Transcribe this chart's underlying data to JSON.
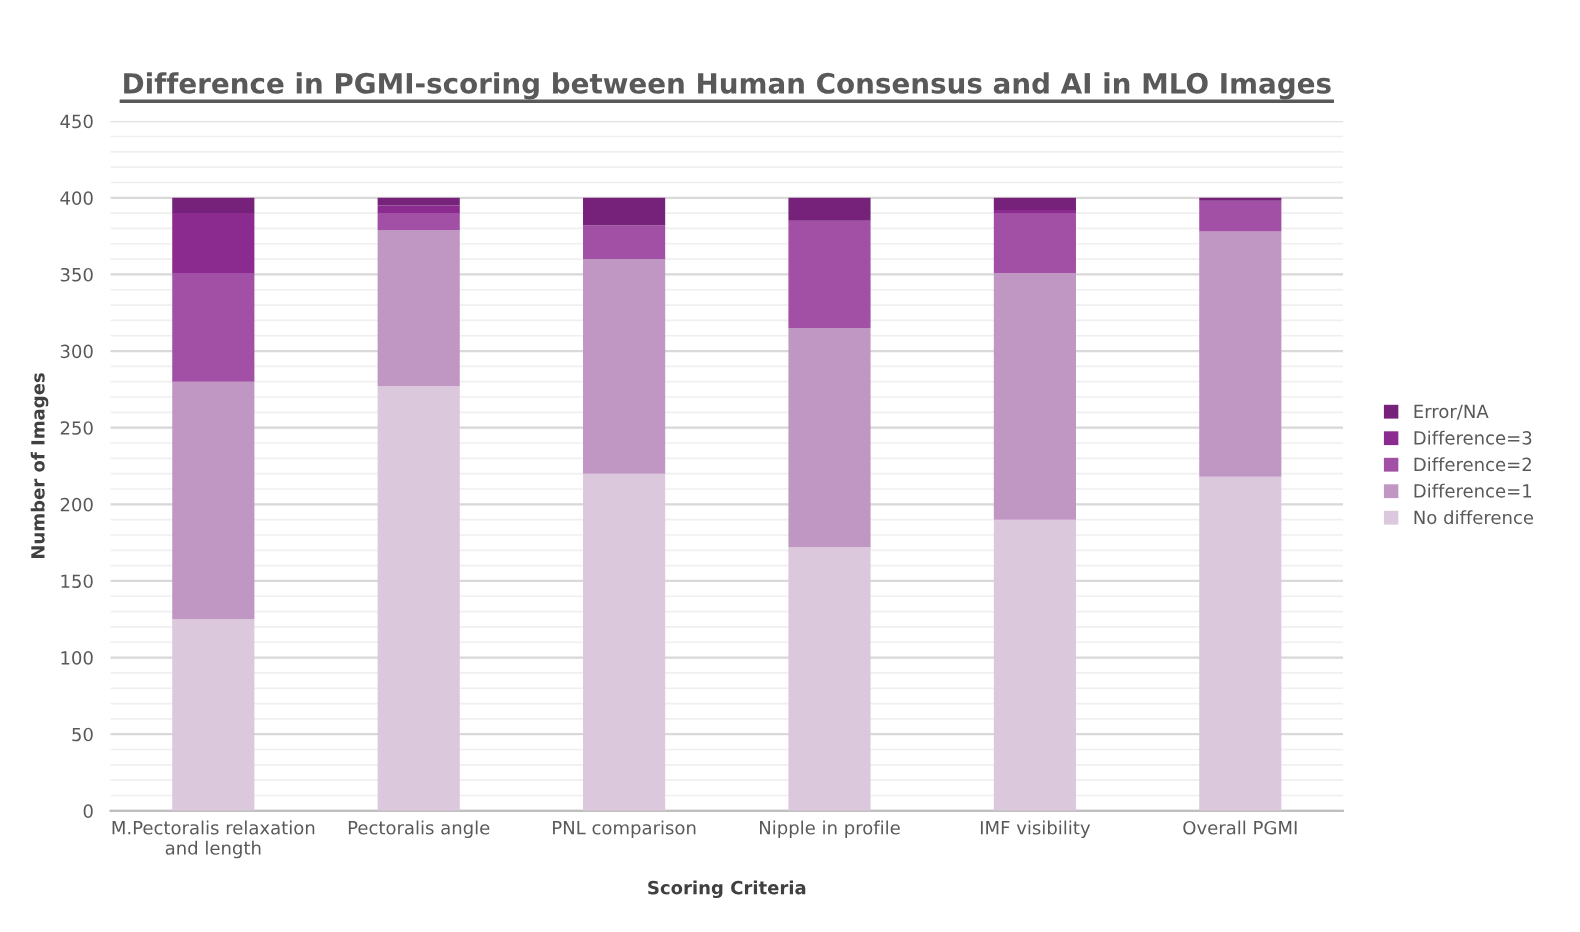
{
  "chart_data": {
    "type": "bar",
    "stacked": true,
    "title": "Difference in PGMI-scoring between Human Consensus and AI in MLO Images",
    "xlabel": "Scoring Criteria",
    "ylabel": "Number of Images",
    "categories": [
      "M.Pectoralis relaxation\nand length",
      "Pectoralis angle",
      "PNL comparison",
      "Nipple in profile",
      "IMF visibility",
      "Overall PGMI"
    ],
    "series": [
      {
        "name": "No difference",
        "color": "#dbc8dc",
        "values": [
          125,
          277,
          220,
          172,
          190,
          218
        ]
      },
      {
        "name": "Difference=1",
        "color": "#c096c3",
        "values": [
          155,
          102,
          140,
          143,
          161,
          160
        ]
      },
      {
        "name": "Difference=2",
        "color": "#a24fa6",
        "values": [
          71,
          11,
          22,
          70,
          39,
          20
        ]
      },
      {
        "name": "Difference=3",
        "color": "#8b2a8f",
        "values": [
          39,
          5,
          0,
          0,
          2,
          0
        ]
      },
      {
        "name": "Error/NA",
        "color": "#76217a",
        "values": [
          10,
          5,
          18,
          15,
          8,
          2
        ]
      }
    ],
    "ylim": [
      0,
      450
    ],
    "yticks": [
      0,
      50,
      100,
      150,
      200,
      250,
      300,
      350,
      400,
      450
    ],
    "grid": "y",
    "legend": "right"
  }
}
